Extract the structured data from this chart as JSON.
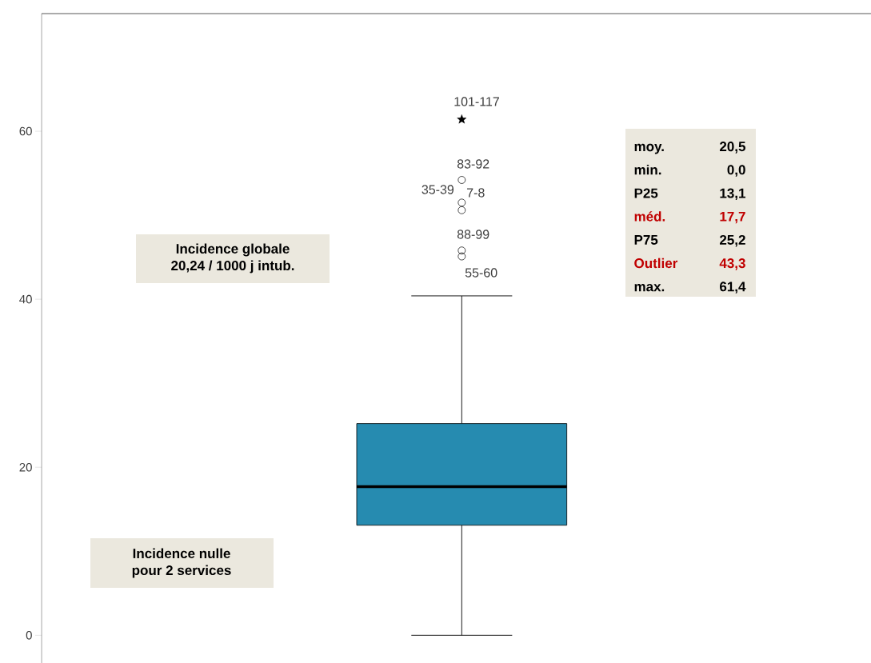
{
  "chart_data": {
    "type": "box",
    "categories": [
      null
    ],
    "color": "#268bb0",
    "boxes": [
      {
        "low": 0,
        "q1": 13.1,
        "median": 17.7,
        "q3": 25.2,
        "high": 40.4,
        "outliers": [
          54.2,
          51.5,
          50.6,
          45.8,
          45.1
        ]
      }
    ],
    "series": [
      {
        "type": "scatter",
        "marker": "star",
        "color": "#000000",
        "values": [
          61.4
        ]
      }
    ],
    "ylim": [
      -3.3,
      74
    ],
    "yticks": [
      0,
      20,
      40,
      60
    ],
    "annotations": [
      "Incidence globale",
      "20,24 / 1000 j intub.",
      "Incidence nulle",
      "pour 2 services",
      "moy.",
      "20,5",
      "min.",
      "0,0",
      "P25",
      "13,1",
      "méd.",
      "17,7",
      "P75",
      "25,2",
      "Outlier",
      "43,3",
      "max.",
      "61,4",
      "101-117",
      "83-92",
      "35-39",
      "7-8",
      "88-99",
      "55-60"
    ]
  }
}
